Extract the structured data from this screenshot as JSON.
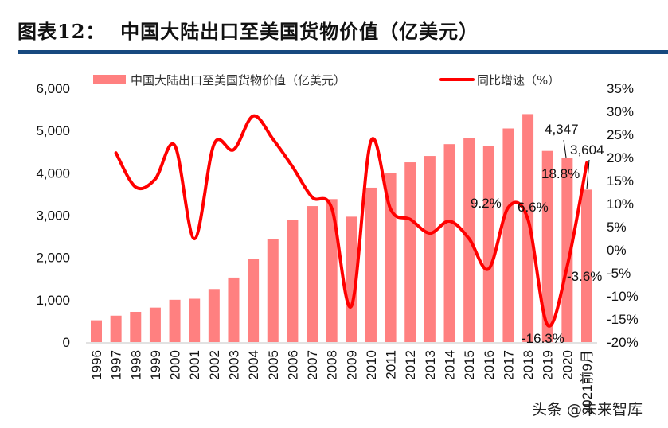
{
  "title": "图表12：  中国大陆出口至美国货物价值（亿美元）",
  "watermark": "头条 @未来智库",
  "chart_data": {
    "type": "bar+line",
    "title": "中国大陆出口至美国货物价值（亿美元）",
    "categories": [
      "1996",
      "1997",
      "1998",
      "1999",
      "2000",
      "2001",
      "2002",
      "2003",
      "2004",
      "2005",
      "2006",
      "2007",
      "2008",
      "2009",
      "2010",
      "2011",
      "2012",
      "2013",
      "2014",
      "2015",
      "2016",
      "2017",
      "2018",
      "2019",
      "2020",
      "2021前9月"
    ],
    "series": [
      {
        "name": "中国大陆出口至美国货物价值（亿美元）",
        "type": "bar",
        "axis": "left",
        "color": "#ff8080",
        "values": [
          515,
          625,
          715,
          815,
          1000,
          1025,
          1255,
          1525,
          1970,
          2435,
          2880,
          3215,
          3380,
          2965,
          3650,
          3990,
          4250,
          4400,
          4680,
          4830,
          4630,
          5050,
          5390,
          4520,
          4347,
          3604
        ]
      },
      {
        "name": "同比增速（%）",
        "type": "line",
        "axis": "right",
        "color": "#ff0000",
        "values": [
          null,
          21.0,
          13.6,
          15.3,
          22.6,
          2.4,
          22.9,
          21.7,
          29.0,
          24.0,
          18.0,
          11.4,
          9.0,
          -12.2,
          23.6,
          8.8,
          6.6,
          3.6,
          6.2,
          2.4,
          -4.1,
          9.2,
          6.6,
          -16.3,
          -3.6,
          18.8
        ]
      }
    ],
    "left_axis": {
      "ylim": [
        0,
        6000
      ],
      "ticks": [
        "0",
        "1,000",
        "2,000",
        "3,000",
        "4,000",
        "5,000",
        "6,000"
      ]
    },
    "right_axis": {
      "ylim": [
        -20,
        35
      ],
      "ticks": [
        "-20%",
        "-15%",
        "-10%",
        "-5%",
        "0%",
        "5%",
        "10%",
        "15%",
        "20%",
        "25%",
        "30%",
        "35%"
      ]
    },
    "data_labels": [
      {
        "category": "2017",
        "text": "9.2%"
      },
      {
        "category": "2018",
        "text": "6.6%"
      },
      {
        "category": "2019",
        "text": "-16.3%"
      },
      {
        "category": "2020",
        "text": "-3.6%"
      },
      {
        "category": "2021前9月",
        "text": "18.8%"
      },
      {
        "category": "2020",
        "text": "4,347"
      },
      {
        "category": "2021前9月",
        "text": "3,604"
      }
    ],
    "legend": "top",
    "grid": false
  }
}
